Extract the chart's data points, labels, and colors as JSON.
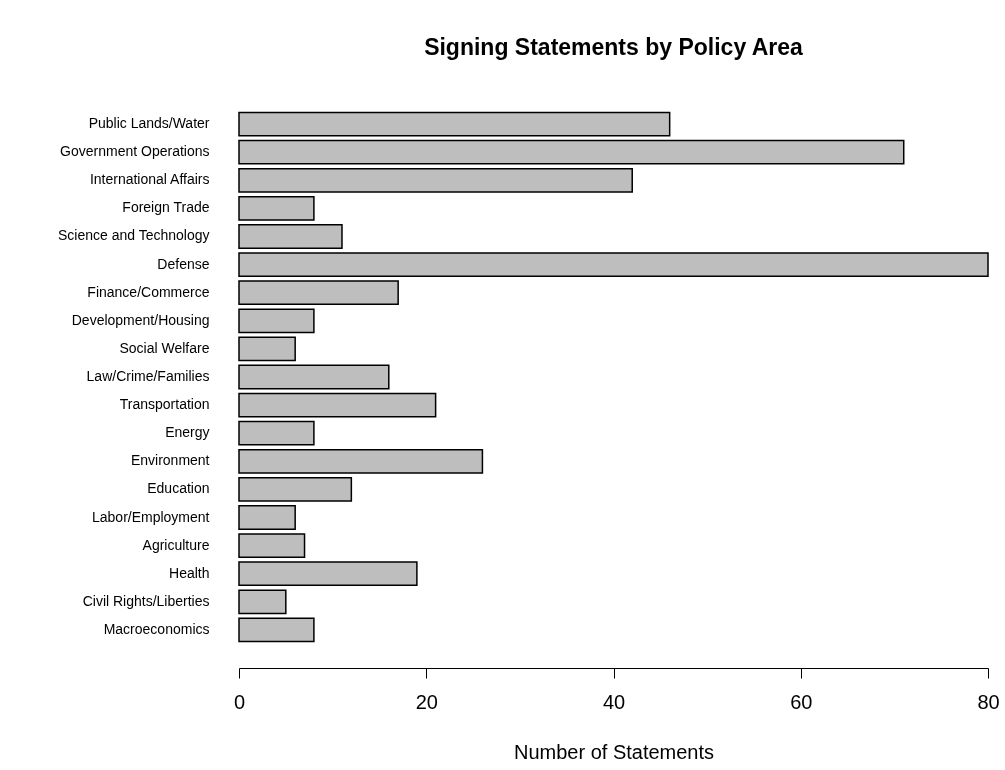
{
  "chart_data": {
    "type": "bar",
    "orientation": "horizontal",
    "title": "Signing Statements by Policy Area",
    "xlabel": "Number of Statements",
    "categories": [
      "Public Lands/Water",
      "Government Operations",
      "International Affairs",
      "Foreign Trade",
      "Science and Technology",
      "Defense",
      "Finance/Commerce",
      "Development/Housing",
      "Social Welfare",
      "Law/Crime/Families",
      "Transportation",
      "Energy",
      "Environment",
      "Education",
      "Labor/Employment",
      "Agriculture",
      "Health",
      "Civil Rights/Liberties",
      "Macroeconomics"
    ],
    "values": [
      46,
      71,
      42,
      8,
      11,
      80,
      17,
      8,
      6,
      16,
      21,
      8,
      26,
      12,
      6,
      7,
      19,
      5,
      8
    ],
    "color": "#bebebe",
    "xlim": [
      0,
      80
    ],
    "xticks": [
      0,
      20,
      40,
      60,
      80
    ],
    "grid": false
  }
}
